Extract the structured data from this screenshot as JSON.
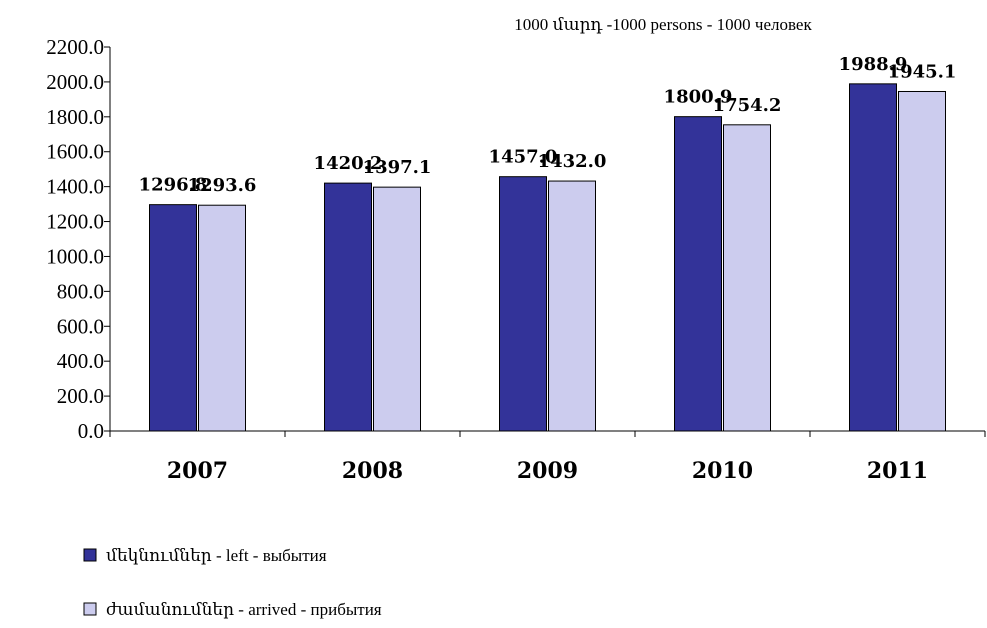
{
  "chart_data": {
    "type": "bar",
    "unit_note": "1000  մարդ -1000  persons - 1000  человек",
    "categories": [
      "2007",
      "2008",
      "2009",
      "2010",
      "2011"
    ],
    "series": [
      {
        "name": "մեկնումներ - left - выбытия",
        "color": "#333399",
        "values": [
          1296.8,
          1420.2,
          1457.0,
          1800.9,
          1988.9
        ],
        "labels": [
          "1296.8",
          "1420.2",
          "1457.0",
          "1800.9",
          "1988.9"
        ]
      },
      {
        "name": "ժամանումներ - arrived - прибытия",
        "color": "#ccccee",
        "values": [
          1293.6,
          1397.1,
          1432.0,
          1754.2,
          1945.1
        ],
        "labels": [
          "1293.6",
          "1397.1",
          "1432.0",
          "1754.2",
          "1945.1"
        ]
      }
    ],
    "ylim": [
      0,
      2200
    ],
    "yticks": [
      "0.0",
      "200.0",
      "400.0",
      "600.0",
      "800.0",
      "1000.0",
      "1200.0",
      "1400.0",
      "1600.0",
      "1800.0",
      "2000.0",
      "2200.0"
    ],
    "grid": false,
    "legend_position": "bottom-left"
  }
}
